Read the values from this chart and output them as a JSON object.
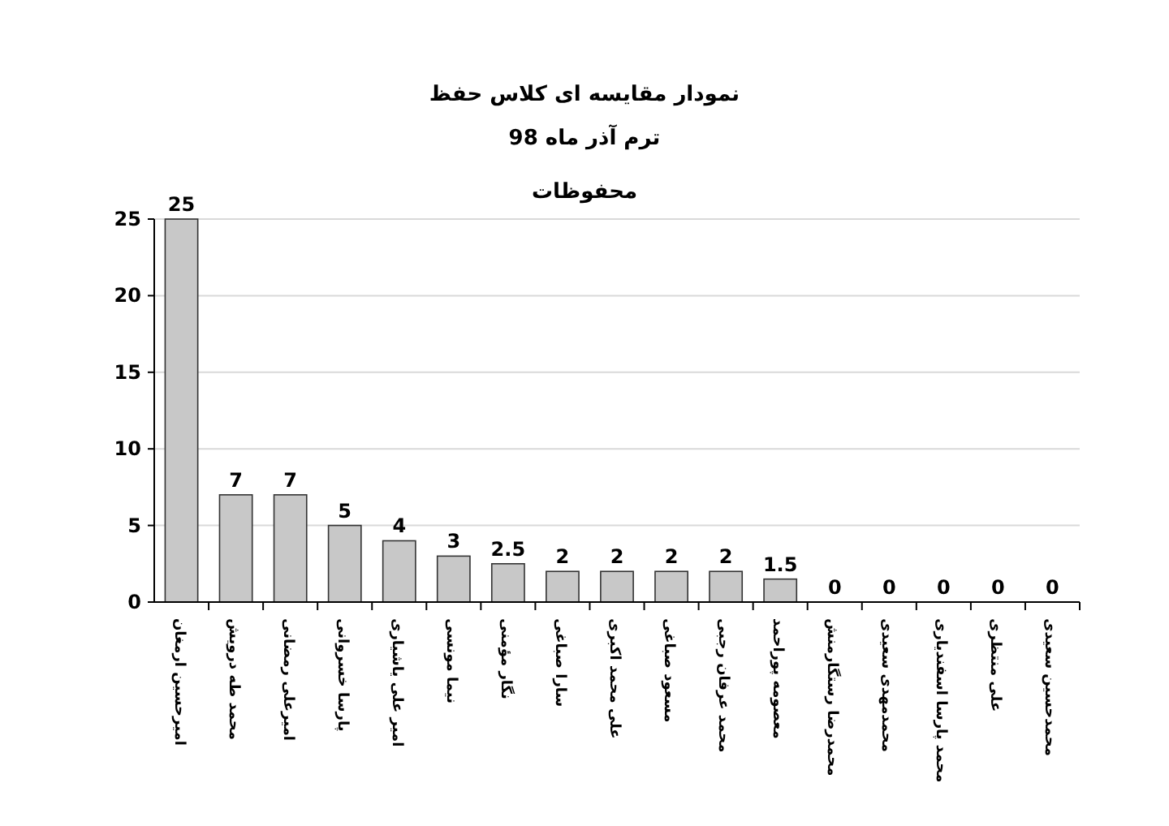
{
  "chart_data": {
    "type": "bar",
    "title": "نمودار مقایسه ای کلاس حفظ",
    "subtitle": "ترم آذر ماه 98",
    "annotations": [
      "محفوظات"
    ],
    "categories": [
      "امیرحسین ارمغان",
      "محمد طه درویش",
      "امیرعلی رمضانی",
      "پارسا خسروانی",
      "امیر علی یاشیاری",
      "نیما مونسی",
      "نگار مؤمنی",
      "سارا صباغی",
      "علی محمد اکبری",
      "مسعود صباغی",
      "محمد عرفان رجبی",
      "معصومه پوراحمد",
      "محمدرضا رستگارمنش",
      "محمدمهدی سعیدی",
      "محمد پارسا اسفندیاری",
      "علی منتظری",
      "محمدحسین سعیدی"
    ],
    "values": [
      25,
      7,
      7,
      5,
      4,
      3,
      2.5,
      2,
      2,
      2,
      2,
      1.5,
      0,
      0,
      0,
      0,
      0
    ],
    "color": "#c8c8c8",
    "ylim": [
      0,
      25
    ],
    "yticks": [
      0,
      5,
      10,
      15,
      20,
      25
    ],
    "grid": "y",
    "data_labels": true
  }
}
